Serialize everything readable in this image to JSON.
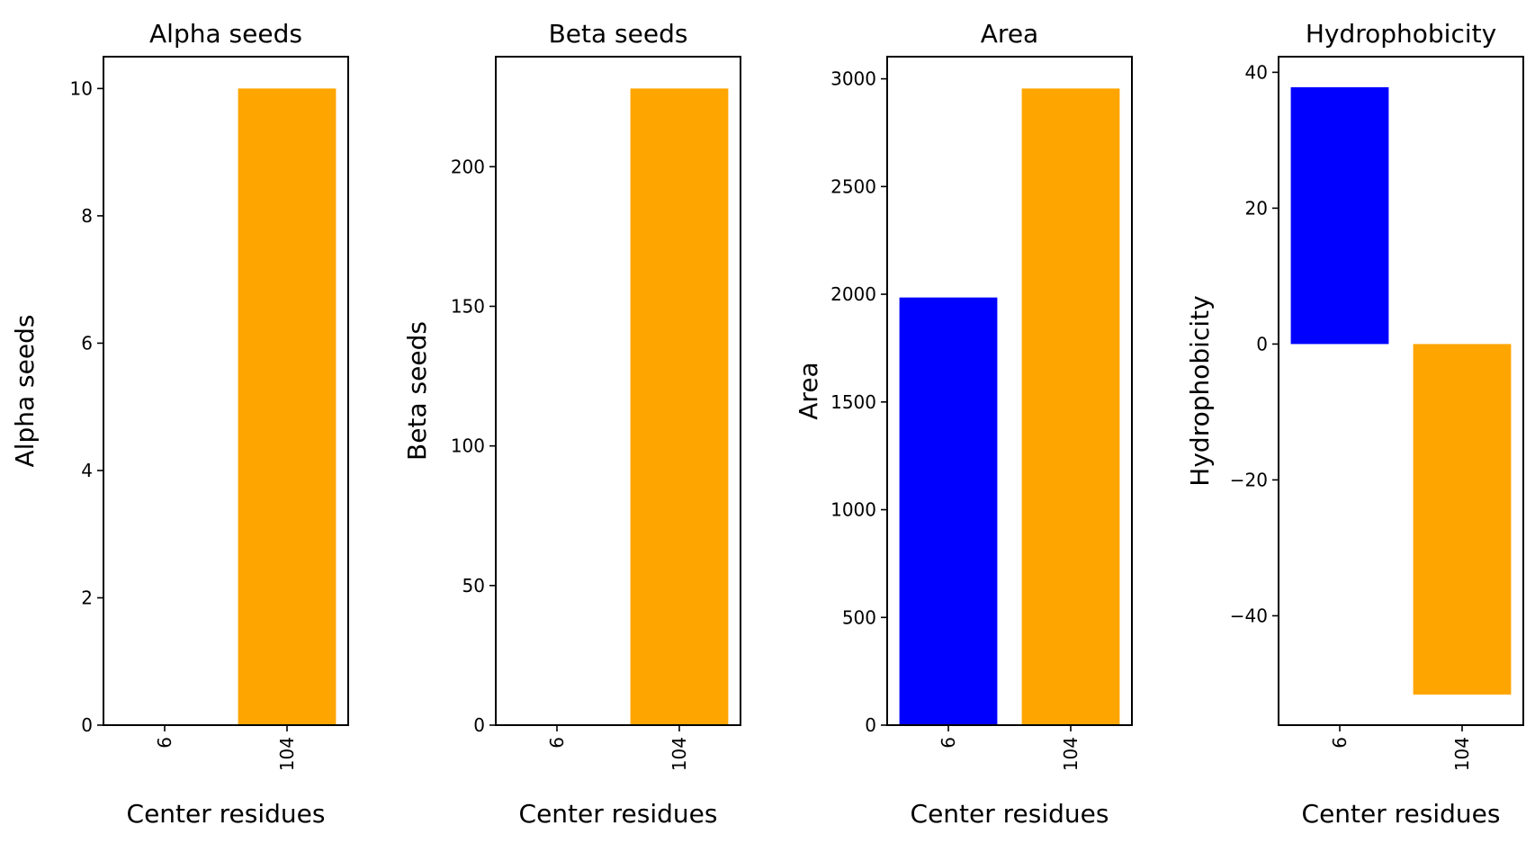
{
  "chart_data": [
    {
      "type": "bar",
      "title": "Alpha seeds",
      "xlabel": "Center residues",
      "ylabel": "Alpha seeds",
      "categories": [
        "6",
        "104"
      ],
      "values": [
        0,
        10
      ],
      "colors": [
        "#0000ff",
        "#ffa500"
      ],
      "ylim": [
        0,
        10.5
      ],
      "yticks": [
        0,
        2,
        4,
        6,
        8,
        10
      ],
      "ytick_labels": [
        "0",
        "2",
        "4",
        "6",
        "8",
        "10"
      ],
      "grid": false
    },
    {
      "type": "bar",
      "title": "Beta seeds",
      "xlabel": "Center residues",
      "ylabel": "Beta seeds",
      "categories": [
        "6",
        "104"
      ],
      "values": [
        0,
        228
      ],
      "colors": [
        "#0000ff",
        "#ffa500"
      ],
      "ylim": [
        0,
        239.4
      ],
      "yticks": [
        0,
        50,
        100,
        150,
        200
      ],
      "ytick_labels": [
        "0",
        "50",
        "100",
        "150",
        "200"
      ],
      "grid": false
    },
    {
      "type": "bar",
      "title": "Area",
      "xlabel": "Center residues",
      "ylabel": "Area",
      "categories": [
        "6",
        "104"
      ],
      "values": [
        1985,
        2955
      ],
      "colors": [
        "#0000ff",
        "#ffa500"
      ],
      "ylim": [
        0,
        3102.75
      ],
      "yticks": [
        0,
        500,
        1000,
        1500,
        2000,
        2500,
        3000
      ],
      "ytick_labels": [
        "0",
        "500",
        "1000",
        "1500",
        "2000",
        "2500",
        "3000"
      ],
      "grid": false
    },
    {
      "type": "bar",
      "title": "Hydrophobicity",
      "xlabel": "Center residues",
      "ylabel": "Hydrophobicity",
      "categories": [
        "6",
        "104"
      ],
      "values": [
        37.8,
        -51.6
      ],
      "colors": [
        "#0000ff",
        "#ffa500"
      ],
      "ylim": [
        -56.1,
        42.3
      ],
      "yticks": [
        -40,
        -20,
        0,
        20,
        40
      ],
      "ytick_labels": [
        "−40",
        "−20",
        "0",
        "20",
        "40"
      ],
      "grid": false
    }
  ]
}
